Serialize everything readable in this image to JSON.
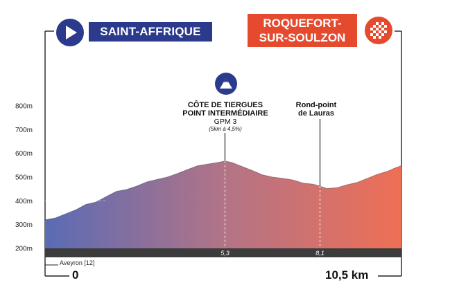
{
  "chart_data": {
    "type": "area",
    "title": "",
    "xlabel": "",
    "ylabel": "",
    "x_unit": "km",
    "y_unit": "m",
    "xlim": [
      0,
      10.5
    ],
    "ylim": [
      200,
      800
    ],
    "ytick_labels": [
      "200m",
      "300m",
      "400m",
      "500m",
      "600m",
      "700m",
      "800m"
    ],
    "yticks": [
      200,
      300,
      400,
      500,
      600,
      700,
      800
    ],
    "grid": false,
    "series": [
      {
        "x": [
          0,
          0.3,
          0.6,
          0.9,
          1.2,
          1.5,
          1.8,
          2.1,
          2.4,
          2.7,
          3.0,
          3.3,
          3.6,
          3.9,
          4.2,
          4.5,
          4.8,
          5.1,
          5.3,
          5.5,
          5.8,
          6.1,
          6.4,
          6.7,
          7.0,
          7.3,
          7.6,
          7.9,
          8.1,
          8.3,
          8.6,
          8.9,
          9.2,
          9.5,
          9.8,
          10.1,
          10.3,
          10.5
        ],
        "y": [
          320,
          328,
          345,
          362,
          385,
          395,
          418,
          440,
          448,
          462,
          480,
          490,
          500,
          515,
          532,
          548,
          555,
          562,
          568,
          562,
          545,
          528,
          510,
          500,
          495,
          488,
          475,
          470,
          462,
          452,
          455,
          468,
          478,
          495,
          512,
          525,
          538,
          548
        ]
      }
    ],
    "markers": [
      {
        "x": 5.3,
        "tick_label": "5,3"
      },
      {
        "x": 8.1,
        "tick_label": "8,1"
      }
    ],
    "reference_line": {
      "y": 400
    }
  },
  "start": {
    "name": "SAINT-AFFRIQUE",
    "km": "0",
    "icon": "play-icon",
    "color": "#2b3a8c"
  },
  "finish": {
    "name_line1": "ROQUEFORT-",
    "name_line2": "SUR-SOULZON",
    "km": "10,5 km",
    "icon": "checkered-flag-icon",
    "color": "#e64a2e"
  },
  "climb": {
    "line1": "CÔTE DE TIERGUES",
    "line2": "POINT INTERMÉDIAIRE",
    "category": "GPM 3",
    "detail": "(5km à 4,5%)",
    "icon": "mountain-icon"
  },
  "waypoint": {
    "line1": "Rond-point",
    "line2": "de Lauras"
  },
  "start_note": "Aveyron [12]",
  "colors": {
    "start": "#5a6bb5",
    "finish": "#ef6f55",
    "road": "#3c3c3c",
    "dark_blue": "#2b3a8c"
  }
}
